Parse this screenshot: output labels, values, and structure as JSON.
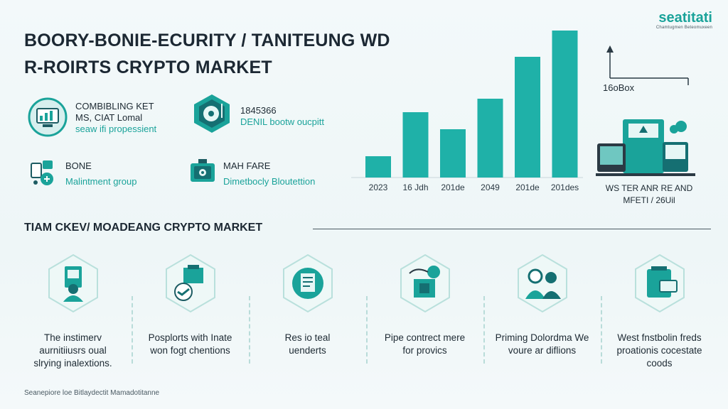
{
  "logo": {
    "main": "seatitati",
    "sub": "Chamtugmen Beteomuxeen"
  },
  "title": {
    "line1": "BOORY-BONIE-ECURITY / TANITEUNG WD",
    "line2": "R-ROIRTS CRYPTO MARKET"
  },
  "stats": [
    {
      "l1": "COMBIBLING KET",
      "l2": "MS, CIAT Lomal",
      "l3": "seaw ifi propessient",
      "icon": "chart-monitor-icon"
    },
    {
      "l1": "1845366",
      "l2": "DENIL bootw oucpitt",
      "l3": "",
      "icon": "shield-disc-icon"
    },
    {
      "l1": "BONE",
      "l2": "Malintment group",
      "l3": "",
      "icon": "network-devices-icon"
    },
    {
      "l1": "MAH FARE",
      "l2": "Dimetbocly Bloutettion",
      "l3": "",
      "icon": "safe-box-icon"
    }
  ],
  "chart_data": {
    "type": "bar",
    "categories": [
      "2023",
      "16 Jdh",
      "201de",
      "2049",
      "201de",
      "201des"
    ],
    "values": [
      30,
      92,
      68,
      111,
      170,
      207
    ],
    "ylim": [
      0,
      210
    ],
    "grid": false,
    "bar_color": "#1fb1a8"
  },
  "box_label": "16oBox",
  "right_caption": {
    "l1": "WS TER ANR RE AND",
    "l2": "MFETI / 26Uil"
  },
  "section": {
    "title": "TIAM CKEV/ MOADEANG CRYPTO MARKET"
  },
  "features": [
    {
      "icon": "user-document-icon",
      "lines": [
        "The instimerv",
        "aurnitiiusrs oual",
        "slrying inalextions."
      ]
    },
    {
      "icon": "hand-box-icon",
      "lines": [
        "Posplorts with Inate",
        "won fogt chentions",
        ""
      ]
    },
    {
      "icon": "secure-document-icon",
      "lines": [
        "Res io teal",
        "uenderts",
        ""
      ]
    },
    {
      "icon": "contract-box-icon",
      "lines": [
        "Pipe contrect mere",
        "for provics",
        ""
      ]
    },
    {
      "icon": "people-icon",
      "lines": [
        "Priming Dolordma We",
        "voure ar diflions",
        ""
      ]
    },
    {
      "icon": "card-bag-icon",
      "lines": [
        "West fnstbolin freds",
        "proationis cocestate",
        "coods"
      ]
    }
  ],
  "footer": "Seanepiore loe Bitlaydectit Mamadotitanne"
}
